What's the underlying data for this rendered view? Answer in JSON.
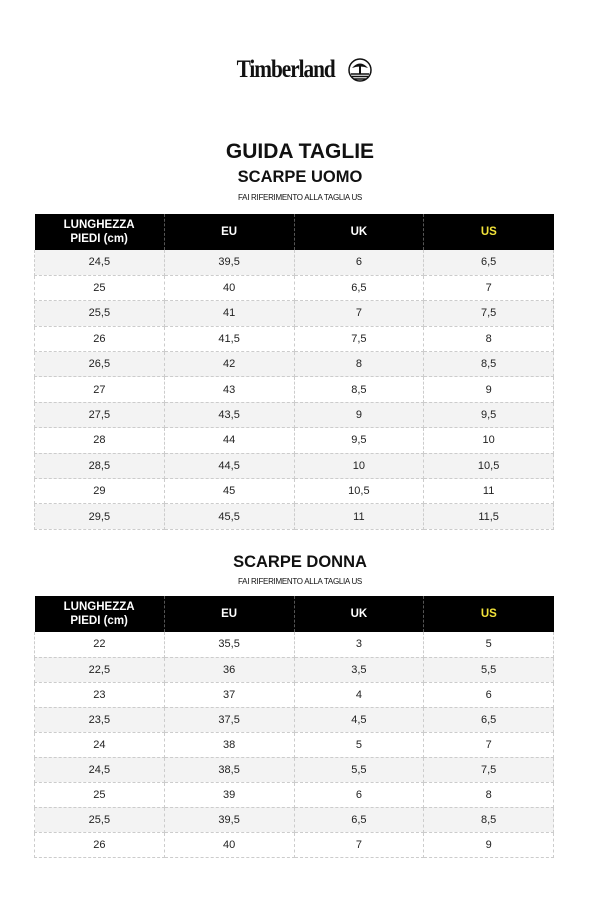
{
  "logo": {
    "text": "Timberland",
    "icon": "tree-icon"
  },
  "title": "GUIDA TAGLIE",
  "colors": {
    "header_bg": "#000000",
    "us_header": "#f2e33a",
    "stripe": "#f3f3f3"
  },
  "men": {
    "title": "SCARPE UOMO",
    "note": "FAI RIFERIMENTO ALLA TAGLIA US",
    "headers": [
      "LUNGHEZZA PIEDI (cm)",
      "EU",
      "UK",
      "US"
    ],
    "rows": [
      [
        "24,5",
        "39,5",
        "6",
        "6,5"
      ],
      [
        "25",
        "40",
        "6,5",
        "7"
      ],
      [
        "25,5",
        "41",
        "7",
        "7,5"
      ],
      [
        "26",
        "41,5",
        "7,5",
        "8"
      ],
      [
        "26,5",
        "42",
        "8",
        "8,5"
      ],
      [
        "27",
        "43",
        "8,5",
        "9"
      ],
      [
        "27,5",
        "43,5",
        "9",
        "9,5"
      ],
      [
        "28",
        "44",
        "9,5",
        "10"
      ],
      [
        "28,5",
        "44,5",
        "10",
        "10,5"
      ],
      [
        "29",
        "45",
        "10,5",
        "11"
      ],
      [
        "29,5",
        "45,5",
        "11",
        "11,5"
      ]
    ]
  },
  "women": {
    "title": "SCARPE DONNA",
    "note": "FAI RIFERIMENTO ALLA TAGLIA US",
    "headers": [
      "LUNGHEZZA PIEDI (cm)",
      "EU",
      "UK",
      "US"
    ],
    "rows": [
      [
        "22",
        "35,5",
        "3",
        "5"
      ],
      [
        "22,5",
        "36",
        "3,5",
        "5,5"
      ],
      [
        "23",
        "37",
        "4",
        "6"
      ],
      [
        "23,5",
        "37,5",
        "4,5",
        "6,5"
      ],
      [
        "24",
        "38",
        "5",
        "7"
      ],
      [
        "24,5",
        "38,5",
        "5,5",
        "7,5"
      ],
      [
        "25",
        "39",
        "6",
        "8"
      ],
      [
        "25,5",
        "39,5",
        "6,5",
        "8,5"
      ],
      [
        "26",
        "40",
        "7",
        "9"
      ]
    ]
  }
}
